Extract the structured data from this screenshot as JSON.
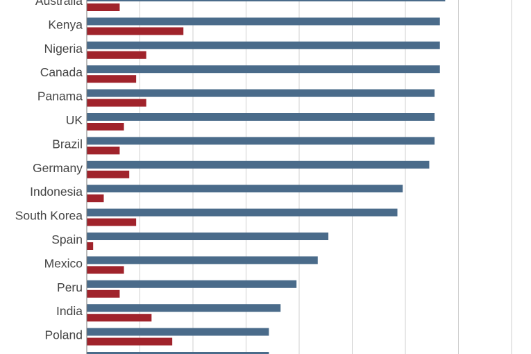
{
  "chart_data": {
    "type": "bar",
    "orientation": "horizontal",
    "xlim": [
      0,
      80
    ],
    "grid": true,
    "categories": [
      "Australia",
      "Kenya",
      "Nigeria",
      "Canada",
      "Panama",
      "UK",
      "Brazil",
      "Germany",
      "Indonesia",
      "South Korea",
      "Spain",
      "Mexico",
      "Peru",
      "India",
      "Poland",
      ""
    ],
    "series": [
      {
        "color": "#4a6b8a",
        "values": [
          67.5,
          66.5,
          66.5,
          66.5,
          65.5,
          65.5,
          65.5,
          64.5,
          59.5,
          58.5,
          45.5,
          43.5,
          39.5,
          36.5,
          34.3,
          34.3
        ]
      },
      {
        "color": "#a0232b",
        "values": [
          6.2,
          18.2,
          11.2,
          9.3,
          11.2,
          7.0,
          6.2,
          8.0,
          3.2,
          9.3,
          1.2,
          7.0,
          6.2,
          12.2,
          16.1,
          null
        ]
      }
    ]
  }
}
